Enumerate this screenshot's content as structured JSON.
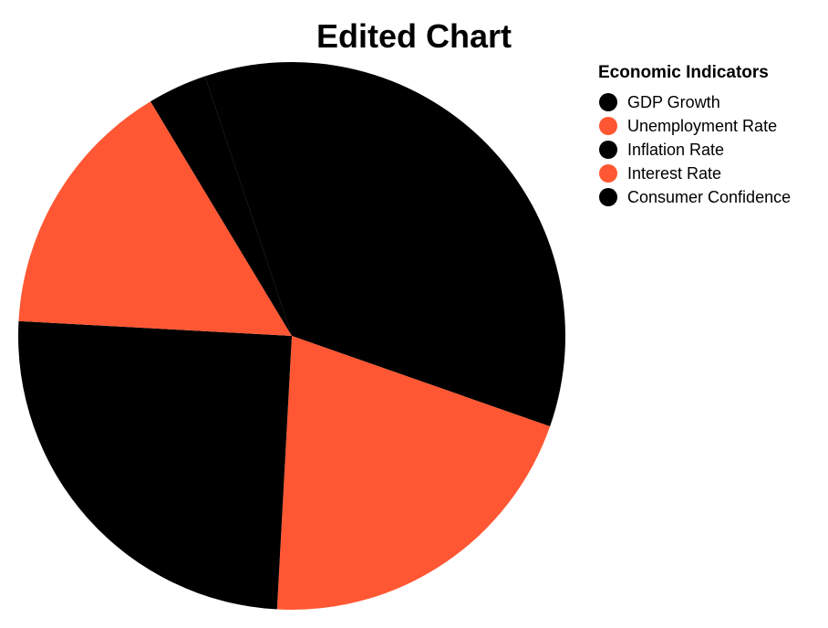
{
  "chart_data": {
    "type": "pie",
    "title": "Edited Chart",
    "legend": {
      "title": "Economic Indicators",
      "placement": "top-right"
    },
    "categories": [
      "GDP Growth",
      "Unemployment Rate",
      "Inflation Rate",
      "Interest Rate",
      "Consumer Confidence"
    ],
    "values": [
      35.5,
      20.5,
      25.0,
      15.5,
      3.5
    ],
    "colors": [
      "#000000",
      "#ff5733",
      "#000000",
      "#ff5733",
      "#000000"
    ],
    "start_angle_deg": -18.5,
    "direction": "clockwise"
  }
}
